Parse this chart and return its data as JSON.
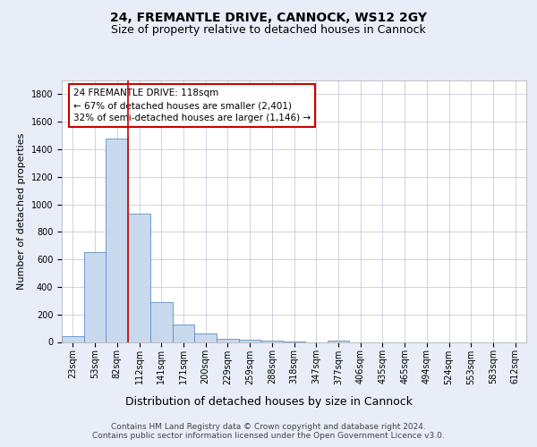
{
  "title_line1": "24, FREMANTLE DRIVE, CANNOCK, WS12 2GY",
  "title_line2": "Size of property relative to detached houses in Cannock",
  "xlabel": "Distribution of detached houses by size in Cannock",
  "ylabel": "Number of detached properties",
  "categories": [
    "23sqm",
    "53sqm",
    "82sqm",
    "112sqm",
    "141sqm",
    "171sqm",
    "200sqm",
    "229sqm",
    "259sqm",
    "288sqm",
    "318sqm",
    "347sqm",
    "377sqm",
    "406sqm",
    "435sqm",
    "465sqm",
    "494sqm",
    "524sqm",
    "553sqm",
    "583sqm",
    "612sqm"
  ],
  "values": [
    40,
    650,
    1475,
    935,
    290,
    125,
    60,
    25,
    15,
    10,
    5,
    0,
    10,
    0,
    0,
    0,
    0,
    0,
    0,
    0,
    0
  ],
  "bar_color": "#c8d9ee",
  "bar_edge_color": "#5b8ec4",
  "vline_position": 3,
  "vline_color": "#cc0000",
  "annotation_text": "24 FREMANTLE DRIVE: 118sqm\n← 67% of detached houses are smaller (2,401)\n32% of semi-detached houses are larger (1,146) →",
  "annotation_box_edgecolor": "#cc0000",
  "ylim_max": 1900,
  "yticks": [
    0,
    200,
    400,
    600,
    800,
    1000,
    1200,
    1400,
    1600,
    1800
  ],
  "background_color": "#e8edf8",
  "plot_background_color": "#ffffff",
  "grid_color": "#c8ccd8",
  "title_fontsize": 10,
  "subtitle_fontsize": 9,
  "ylabel_fontsize": 8,
  "xlabel_fontsize": 9,
  "tick_fontsize": 7,
  "annotation_fontsize": 7.5,
  "footer_fontsize": 6.5,
  "footer_line1": "Contains HM Land Registry data © Crown copyright and database right 2024.",
  "footer_line2": "Contains public sector information licensed under the Open Government Licence v3.0."
}
